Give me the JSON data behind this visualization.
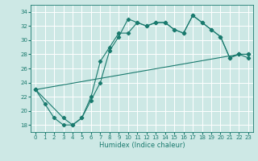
{
  "xlabel": "Humidex (Indice chaleur)",
  "bg_color": "#cde8e5",
  "grid_color": "#ffffff",
  "line_color": "#1a7a6e",
  "xlim": [
    -0.5,
    23.5
  ],
  "ylim": [
    17.0,
    35.0
  ],
  "xticks": [
    0,
    1,
    2,
    3,
    4,
    5,
    6,
    7,
    8,
    9,
    10,
    11,
    12,
    13,
    14,
    15,
    16,
    17,
    18,
    19,
    20,
    21,
    22,
    23
  ],
  "yticks": [
    18,
    20,
    22,
    24,
    26,
    28,
    30,
    32,
    34
  ],
  "line1_x": [
    0,
    1,
    2,
    3,
    4,
    5,
    6,
    7,
    8,
    9,
    10,
    11,
    12,
    13,
    14,
    15,
    16,
    17,
    18,
    19,
    20,
    21,
    22,
    23
  ],
  "line1_y": [
    23,
    21,
    19,
    18,
    18,
    19,
    22,
    27,
    29,
    31,
    31,
    32.5,
    32,
    32.5,
    32.5,
    31.5,
    31,
    33.5,
    32.5,
    31.5,
    30.5,
    27.5,
    28,
    28
  ],
  "line2_x": [
    0,
    3,
    4,
    5,
    6,
    7,
    8,
    9,
    10,
    11,
    12,
    13,
    14,
    15,
    16,
    17,
    18,
    19,
    20,
    21,
    22,
    23
  ],
  "line2_y": [
    23,
    19,
    18,
    19,
    21.5,
    24,
    28.5,
    30.5,
    33,
    32.5,
    32,
    32.5,
    32.5,
    31.5,
    31,
    33.5,
    32.5,
    31.5,
    30.5,
    27.5,
    28,
    28
  ],
  "line3_x": [
    0,
    22,
    23
  ],
  "line3_y": [
    23,
    28,
    27.5
  ]
}
